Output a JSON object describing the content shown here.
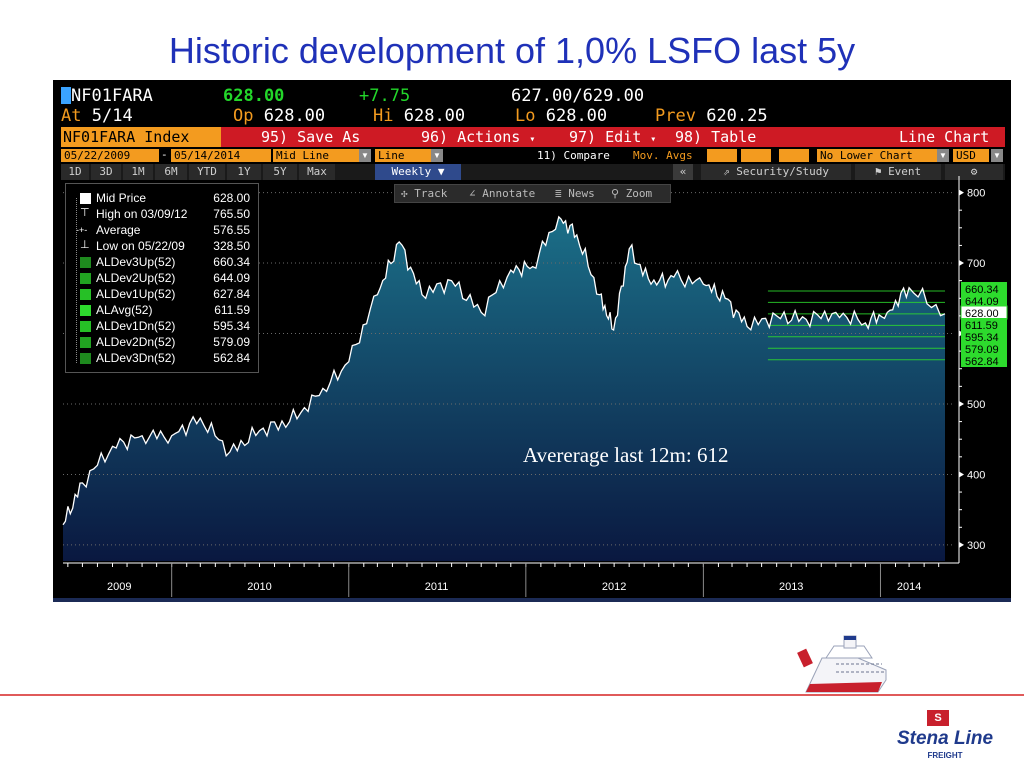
{
  "slide_title": "Historic development of 1,0% LSFO last 5y",
  "header": {
    "ticker": "NF01FARA",
    "last": "628.00",
    "change": "+7.75",
    "bid_ask": "627.00/629.00",
    "at_label": "At",
    "at_value": "5/14",
    "op_label": "Op",
    "op_value": "628.00",
    "hi_label": "Hi",
    "hi_value": "628.00",
    "lo_label": "Lo",
    "lo_value": "628.00",
    "prev_label": "Prev",
    "prev_value": "620.25"
  },
  "menu": {
    "index_label": "NF01FARA Index",
    "save_as": "95) Save As",
    "actions": "96) Actions",
    "edit": "97) Edit",
    "table": "98) Table",
    "chart_type": "Line Chart"
  },
  "controls": {
    "start_date": "05/22/2009",
    "end_date": "05/14/2014",
    "field": "Mid Line",
    "style": "Line",
    "compare": "11) Compare",
    "mov_avgs": "Mov. Avgs",
    "lower_chart": "No Lower Chart",
    "currency": "USD"
  },
  "periods": [
    "1D",
    "3D",
    "1M",
    "6M",
    "YTD",
    "1Y",
    "5Y",
    "Max"
  ],
  "frequency": "Weekly ▼",
  "collapse": "«",
  "security_study": "Security/Study",
  "event": "Event",
  "settings_glyph": "⚙",
  "float_tools": {
    "track": "Track",
    "annotate": "Annotate",
    "news": "News",
    "zoom": "Zoom"
  },
  "legend": [
    {
      "label": "Mid Price",
      "value": "628.00",
      "marker": "square-white"
    },
    {
      "label": "High on 03/09/12",
      "value": "765.50",
      "marker": "high-tick"
    },
    {
      "label": "Average",
      "value": "576.55",
      "marker": "avg-dash"
    },
    {
      "label": "Low on 05/22/09",
      "value": "328.50",
      "marker": "low-tick"
    },
    {
      "label": "ALDev3Up(52)",
      "value": "660.34",
      "marker": "#1e8a1e"
    },
    {
      "label": "ALDev2Up(52)",
      "value": "644.09",
      "marker": "#21a321"
    },
    {
      "label": "ALDev1Up(52)",
      "value": "627.84",
      "marker": "#26c026"
    },
    {
      "label": "ALAvg(52)",
      "value": "611.59",
      "marker": "#2ddb2d"
    },
    {
      "label": "ALDev1Dn(52)",
      "value": "595.34",
      "marker": "#26c026"
    },
    {
      "label": "ALDev2Dn(52)",
      "value": "579.09",
      "marker": "#21a321"
    },
    {
      "label": "ALDev3Dn(52)",
      "value": "562.84",
      "marker": "#1e8a1e"
    }
  ],
  "annotation": "Avererage last 12m: 612",
  "colors": {
    "title": "#1f31b8",
    "bloomberg_orange": "#f39b1f",
    "bloomberg_red": "#ce1a24",
    "area_top": "#1b6f88",
    "area_bottom": "#0a1840",
    "band_green": "#2ddb2d"
  },
  "chart_data": {
    "type": "area",
    "title": "",
    "xlabel": "",
    "ylabel": "",
    "x_ticks": [
      "2009",
      "2010",
      "2011",
      "2012",
      "2013",
      "2014"
    ],
    "y_ticks": [
      300,
      400,
      500,
      600,
      700,
      800
    ],
    "ylim": [
      280,
      815
    ],
    "xlim": [
      "2009-05-22",
      "2014-05-14"
    ],
    "grid": true,
    "series": [
      {
        "name": "Mid Price",
        "x": [
          "2009-05-22",
          "2009-07-01",
          "2009-09-01",
          "2009-11-01",
          "2010-01-01",
          "2010-03-01",
          "2010-05-01",
          "2010-07-01",
          "2010-09-01",
          "2010-11-01",
          "2011-01-01",
          "2011-03-01",
          "2011-04-15",
          "2011-06-01",
          "2011-08-01",
          "2011-10-01",
          "2011-12-01",
          "2012-01-15",
          "2012-03-09",
          "2012-04-15",
          "2012-06-01",
          "2012-06-30",
          "2012-08-01",
          "2012-09-15",
          "2012-11-01",
          "2013-01-01",
          "2013-02-15",
          "2013-04-01",
          "2013-06-01",
          "2013-08-01",
          "2013-10-01",
          "2013-12-01",
          "2014-01-15",
          "2014-03-01",
          "2014-05-14"
        ],
        "y": [
          328.5,
          388,
          440,
          455,
          455,
          480,
          432,
          462,
          475,
          512,
          560,
          655,
          730,
          655,
          675,
          630,
          690,
          695,
          765.5,
          740,
          655,
          605,
          720,
          670,
          680,
          670,
          650,
          610,
          625,
          620,
          630,
          615,
          630,
          665,
          628
        ]
      }
    ],
    "bands": [
      {
        "name": "ALDev3Up(52)",
        "value": 660.34
      },
      {
        "name": "ALDev2Up(52)",
        "value": 644.09
      },
      {
        "name": "ALDev1Up(52)",
        "value": 627.84
      },
      {
        "name": "ALAvg(52)",
        "value": 611.59
      },
      {
        "name": "ALDev1Dn(52)",
        "value": 595.34
      },
      {
        "name": "ALDev2Dn(52)",
        "value": 579.09
      },
      {
        "name": "ALDev3Dn(52)",
        "value": 562.84
      }
    ],
    "right_labels": [
      "660.34",
      "644.09",
      "628.00",
      "611.59",
      "595.34",
      "579.09",
      "562.84"
    ],
    "legend_position": "top-left"
  },
  "logo": {
    "brand": "Stena Line",
    "sub": "FREIGHT",
    "badge": "S"
  }
}
